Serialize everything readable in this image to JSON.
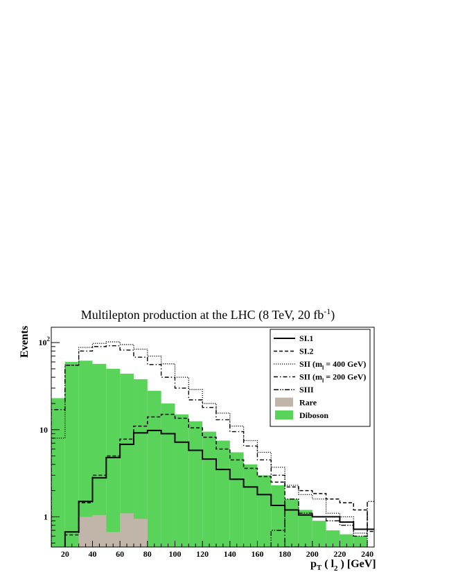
{
  "chart_data": {
    "type": "bar",
    "title": "Multilepton production at the LHC (8 TeV, 20 fb",
    "title_superscript": "-1",
    "title_suffix": ")",
    "xlabel_main": "p",
    "xlabel_sub1": "T",
    "xlabel_mid": " ( l",
    "xlabel_sub2": "2",
    "xlabel_end": " ) [GeV]",
    "ylabel": "Events",
    "xlim": [
      10,
      245
    ],
    "ylim": [
      0.45,
      150
    ],
    "y_scale": "log",
    "bin_width": 10,
    "bin_edges_start": 10,
    "x_ticks": [
      20,
      40,
      60,
      80,
      100,
      120,
      140,
      160,
      180,
      200,
      220,
      240
    ],
    "y_ticks": [
      {
        "value": 1,
        "label": "1"
      },
      {
        "value": 10,
        "label": "10"
      },
      {
        "value": 100,
        "label": "10",
        "sup": "2"
      }
    ],
    "legend_position": "top-right",
    "stacked": [
      {
        "name": "Diboson",
        "color": "#5ad35a",
        "values": [
          23,
          60,
          62,
          57,
          50,
          44,
          38,
          28,
          20,
          15,
          12.5,
          9.5,
          7.5,
          5.5,
          4,
          3,
          2.3,
          1.6,
          1.2,
          0.9,
          0.7,
          0.63,
          0.6,
          0
        ]
      },
      {
        "name": "Rare",
        "color": "#c0b5a8",
        "values": [
          0,
          0,
          1.0,
          1.05,
          0.67,
          1.1,
          0.95,
          0,
          0,
          0,
          0,
          0,
          0,
          0,
          0,
          0,
          0,
          0,
          0,
          0,
          0,
          0,
          0,
          0
        ]
      }
    ],
    "series": [
      {
        "name": "SI.1",
        "style": "solid",
        "values": [
          0,
          0.67,
          1.5,
          2.8,
          4.8,
          6.8,
          9.2,
          9.8,
          9.0,
          7.2,
          5.8,
          4.6,
          3.5,
          2.7,
          2.2,
          1.8,
          1.35,
          1.2,
          1.05,
          1.0,
          1.0,
          0.87,
          0.72,
          0.72
        ]
      },
      {
        "name": "SI.2",
        "style": "dashed",
        "values": [
          0,
          0.62,
          1.45,
          3.0,
          5.0,
          7.8,
          11,
          14,
          15,
          13.5,
          10.5,
          8.2,
          6.0,
          4.5,
          3.6,
          2.9,
          2.5,
          2.2,
          2.0,
          1.85,
          1.6,
          1.45,
          1.2,
          0.68
        ]
      },
      {
        "name": "SII (m",
        "name_sub": "l",
        "name_suffix": " = 400 GeV)",
        "style": "dotted",
        "values": [
          8,
          55,
          88,
          98,
          102,
          95,
          84,
          70,
          57,
          40,
          29,
          20,
          15.5,
          11,
          7.5,
          5.5,
          3.7,
          2.3,
          1.8,
          1.6,
          1.1,
          1.0,
          0.65,
          0
        ]
      },
      {
        "name": "SII (m",
        "name_sub": "l",
        "name_suffix": " = 200 GeV)",
        "style": "dashdot",
        "values": [
          17,
          55,
          80,
          90,
          92,
          82,
          68,
          56,
          40,
          30,
          22,
          18,
          13,
          9.5,
          6.5,
          4.5,
          3.0,
          0.45,
          0.45,
          0,
          0,
          0,
          0,
          0
        ]
      },
      {
        "name": "SIII",
        "style": "dashdotdot",
        "values": [
          0,
          0,
          0,
          0,
          0,
          0,
          0,
          0,
          0,
          0,
          0,
          0,
          0,
          0,
          0,
          0,
          0.7,
          1.6,
          1.1,
          1.0,
          0.9,
          0.8,
          0.6,
          1.5
        ]
      }
    ]
  }
}
